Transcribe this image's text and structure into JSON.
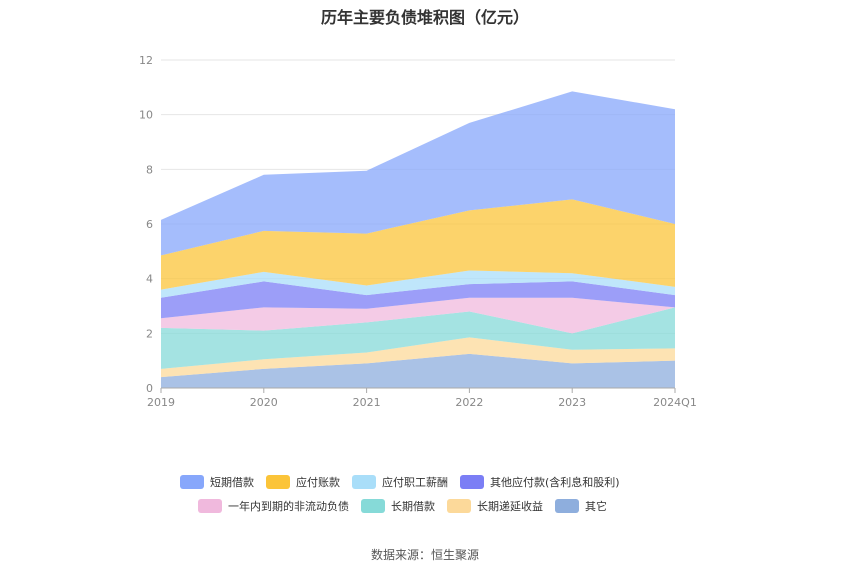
{
  "chart_data": {
    "type": "area",
    "stacked": true,
    "title": "历年主要负债堆积图（亿元）",
    "source": "数据来源：恒生聚源",
    "categories": [
      "2019",
      "2020",
      "2021",
      "2022",
      "2023",
      "2024Q1"
    ],
    "y_ticks": [
      "0",
      "2",
      "4",
      "6",
      "8",
      "10",
      "12"
    ],
    "ylim": [
      0,
      12
    ],
    "grid": true,
    "legend_position": "bottom",
    "series": [
      {
        "name": "其它",
        "color": "#8eaedd",
        "values": [
          0.4,
          0.7,
          0.9,
          1.25,
          0.9,
          1.0
        ]
      },
      {
        "name": "长期递延收益",
        "color": "#fcd99a",
        "values": [
          0.3,
          0.35,
          0.4,
          0.6,
          0.5,
          0.45
        ]
      },
      {
        "name": "长期借款",
        "color": "#86dad8",
        "values": [
          1.5,
          1.05,
          1.1,
          0.95,
          0.6,
          1.5
        ]
      },
      {
        "name": "一年内到期的非流动负债",
        "color": "#f0b9dd",
        "values": [
          0.35,
          0.85,
          0.5,
          0.5,
          1.3,
          0.0
        ]
      },
      {
        "name": "其他应付款(含利息和股利)",
        "color": "#7b7ef5",
        "values": [
          0.75,
          0.95,
          0.5,
          0.5,
          0.6,
          0.45
        ]
      },
      {
        "name": "应付职工薪酬",
        "color": "#a9def9",
        "values": [
          0.3,
          0.35,
          0.35,
          0.5,
          0.3,
          0.3
        ]
      },
      {
        "name": "应付账款",
        "color": "#fbc439",
        "values": [
          1.25,
          1.5,
          1.9,
          2.2,
          2.7,
          2.3
        ]
      },
      {
        "name": "短期借款",
        "color": "#87a7fb",
        "values": [
          1.3,
          2.05,
          2.3,
          3.2,
          3.95,
          4.2
        ]
      }
    ]
  }
}
